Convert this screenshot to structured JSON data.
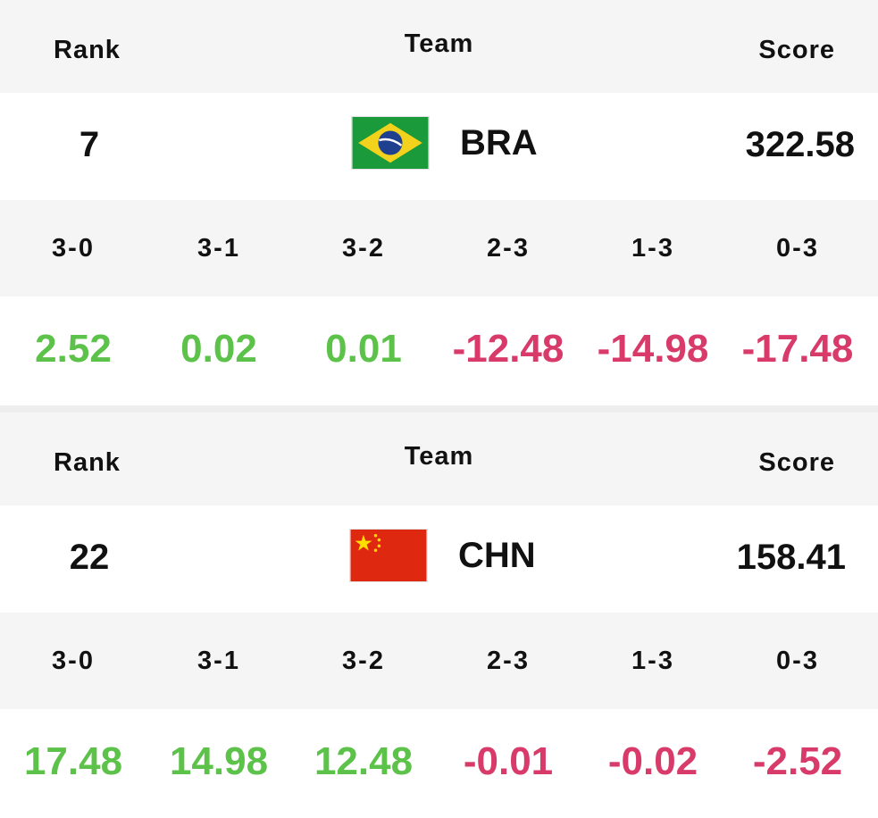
{
  "labels": {
    "rank": "Rank",
    "team": "Team",
    "score": "Score"
  },
  "cards": [
    {
      "rank": "7",
      "team": "BRA",
      "flag_icon": "brazil-flag-icon",
      "score": "322.58",
      "outcomes": [
        "3-0",
        "3-1",
        "3-2",
        "2-3",
        "1-3",
        "0-3"
      ],
      "deltas": [
        "2.52",
        "0.02",
        "0.01",
        "-12.48",
        "-14.98",
        "-17.48"
      ]
    },
    {
      "rank": "22",
      "team": "CHN",
      "flag_icon": "china-flag-icon",
      "score": "158.41",
      "outcomes": [
        "3-0",
        "3-1",
        "3-2",
        "2-3",
        "1-3",
        "0-3"
      ],
      "deltas": [
        "17.48",
        "14.98",
        "12.48",
        "-0.01",
        "-0.02",
        "-2.52"
      ]
    }
  ],
  "colors": {
    "positive": "#5cc24a",
    "negative": "#d83a6a",
    "header_bg": "#f5f5f5"
  }
}
